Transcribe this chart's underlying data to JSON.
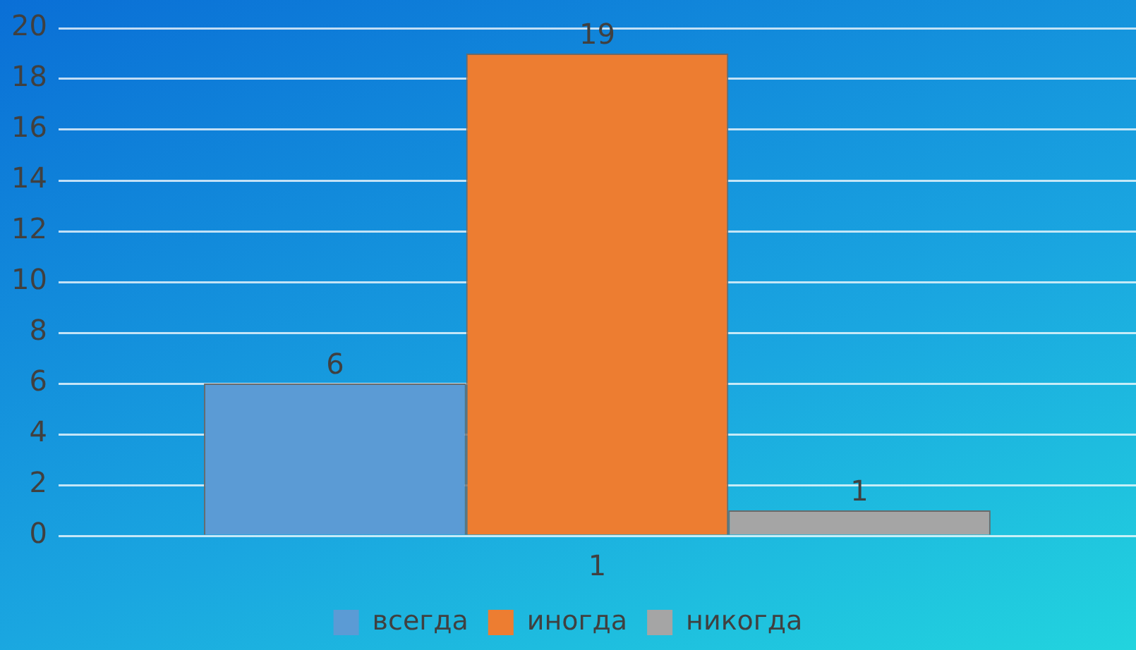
{
  "chart_data": {
    "type": "bar",
    "categories": [
      "1"
    ],
    "series": [
      {
        "name": "всегда",
        "color": "#5b9bd5",
        "values": [
          6
        ]
      },
      {
        "name": "иногда",
        "color": "#ed7d31",
        "values": [
          19
        ]
      },
      {
        "name": "никогда",
        "color": "#a5a5a5",
        "values": [
          1
        ]
      }
    ],
    "ylim": [
      0,
      20
    ],
    "yticks": [
      0,
      2,
      4,
      6,
      8,
      10,
      12,
      14,
      16,
      18,
      20
    ],
    "grid": "y",
    "legend": "bottom",
    "data_labels": true
  }
}
